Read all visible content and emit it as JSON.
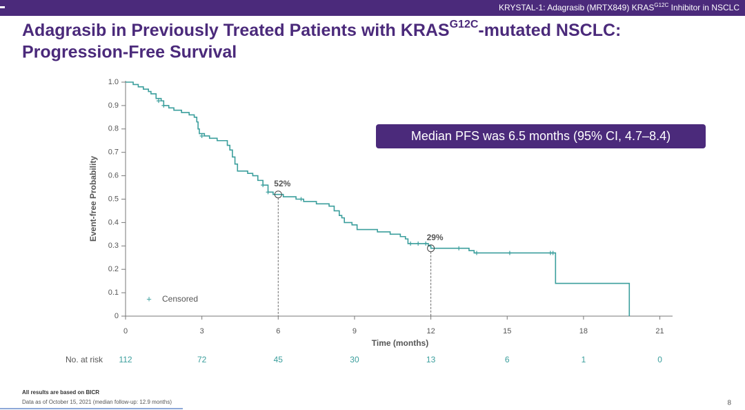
{
  "header": [
    "KRYSTAL-1: Adagrasib (MRTX849) KRAS",
    "G12C",
    " Inhibitor in NSCLC"
  ],
  "footnotes": [
    "All results are based on BICR",
    "Data as of October 15, 2021 (median follow-up: 12.9 months)"
  ],
  "page_number": "8",
  "chart_data": {
    "type": "step",
    "title": [
      "Adagrasib in Previously Treated Patients with KRAS",
      "G12C",
      "-mutated NSCLC:",
      "Progression-Free Survival"
    ],
    "x_label": "Time (months)",
    "y_label": "Event-free Probability",
    "xlim": [
      0,
      21.5
    ],
    "ylim": [
      0,
      1
    ],
    "xticks": [
      0,
      3,
      6,
      9,
      12,
      15,
      18,
      21
    ],
    "yticks": [
      {
        "value": 0,
        "label": "0"
      },
      0.1,
      0.2,
      0.3,
      0.4,
      0.5,
      0.6,
      0.7,
      0.8,
      0.9,
      {
        "value": 1,
        "label": "1.0"
      }
    ],
    "series": [
      {
        "color": "#3a9e9c",
        "x": [
          0,
          0.3,
          0.5,
          0.7,
          0.9,
          1.0,
          1.2,
          1.4,
          1.5,
          1.7,
          1.9,
          2.2,
          2.5,
          2.7,
          2.8,
          2.85,
          2.9,
          3.1,
          3.3,
          3.6,
          4.0,
          4.1,
          4.2,
          4.3,
          4.4,
          4.8,
          5.0,
          5.2,
          5.4,
          5.6,
          5.8,
          6.2,
          6.7,
          7.0,
          7.5,
          8.0,
          8.2,
          8.4,
          8.5,
          8.6,
          8.9,
          9.1,
          9.9,
          10.4,
          10.8,
          11.0,
          11.1,
          11.9,
          12.0,
          13.5,
          13.7,
          16.9,
          19.8
        ],
        "values": [
          1.0,
          0.99,
          0.98,
          0.97,
          0.96,
          0.95,
          0.93,
          0.92,
          0.9,
          0.89,
          0.88,
          0.87,
          0.86,
          0.85,
          0.83,
          0.8,
          0.78,
          0.77,
          0.76,
          0.75,
          0.73,
          0.71,
          0.68,
          0.65,
          0.62,
          0.61,
          0.6,
          0.58,
          0.56,
          0.53,
          0.52,
          0.51,
          0.5,
          0.49,
          0.48,
          0.47,
          0.45,
          0.43,
          0.42,
          0.4,
          0.39,
          0.37,
          0.36,
          0.35,
          0.34,
          0.33,
          0.31,
          0.3,
          0.29,
          0.28,
          0.27,
          0.14,
          0
        ]
      }
    ],
    "censored": {
      "name": "Censored",
      "x": [
        1.3,
        1.5,
        3.0,
        5.4,
        5.6,
        6.9,
        11.2,
        11.5,
        11.8,
        13.1,
        13.8,
        15.1,
        16.7,
        16.8
      ],
      "values": [
        0.92,
        0.9,
        0.77,
        0.56,
        0.53,
        0.5,
        0.31,
        0.31,
        0.31,
        0.29,
        0.27,
        0.27,
        0.27,
        0.27
      ]
    },
    "annotations": [
      {
        "text": "52%",
        "x": 6,
        "y": 0.52
      },
      {
        "text": "29%",
        "x": 12,
        "y": 0.29
      }
    ],
    "median_box": "Median PFS was 6.5 months (95% CI, 4.7–8.4)",
    "at_risk": {
      "label": "No. at risk",
      "values": [
        112,
        72,
        45,
        30,
        13,
        6,
        1,
        0
      ]
    }
  }
}
